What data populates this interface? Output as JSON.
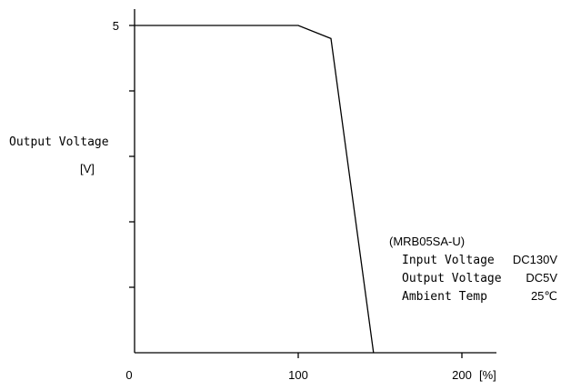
{
  "chart_data": {
    "type": "line",
    "ylabel_line1": "Output Voltage",
    "ylabel_line2": "[V]",
    "x_unit": "[%]",
    "xlim": [
      0,
      220
    ],
    "ylim": [
      0,
      5
    ],
    "x_ticks": [
      0,
      100,
      200
    ],
    "x_tick_labels": [
      "0",
      "100",
      "200"
    ],
    "y_ticks": [
      1,
      2,
      3,
      4,
      5
    ],
    "y_tick_labels": [
      "",
      "",
      "",
      "",
      "5"
    ],
    "grid": false,
    "series": [
      {
        "x": [
          0,
          100,
          120,
          146
        ],
        "y": [
          5,
          5,
          4.8,
          0
        ]
      }
    ],
    "annotation": {
      "model": "(MRB05SA-U)",
      "rows": [
        {
          "label": "Input Voltage",
          "value": "DC130V"
        },
        {
          "label": "Output Voltage",
          "value": "DC5V"
        },
        {
          "label": "Ambient Temp",
          "value": "25℃"
        }
      ]
    }
  }
}
